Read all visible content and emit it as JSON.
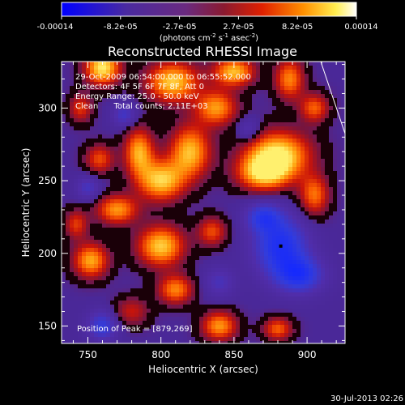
{
  "chart_data": {
    "type": "heatmap",
    "title": "Reconstructed RHESSI Image",
    "xlabel": "Heliocentric X (arcsec)",
    "ylabel": "Heliocentric Y (arcsec)",
    "xlim": [
      732,
      926
    ],
    "ylim": [
      138,
      332
    ],
    "xticks": [
      750,
      800,
      850,
      900
    ],
    "yticks": [
      150,
      200,
      250,
      300
    ],
    "colorbar": {
      "ticks": [
        "-0.00014",
        "-8.2e-05",
        "-2.7e-05",
        "2.7e-05",
        "8.2e-05",
        "0.00014"
      ],
      "unit_prefix": "(photons cm",
      "unit_exp1": "-2",
      "unit_mid": " s",
      "unit_exp2": "-1",
      "unit_mid2": " asec",
      "unit_exp3": "-2",
      "unit_suffix": ")",
      "min": -0.00014,
      "max": 0.00014
    },
    "info_lines": [
      "29-Oct-2009 06:54:00.000 to 06:55:52.000",
      "Detectors: 4F 5F 6F 7F 8F, Att 0",
      "Energy Range: 25.0 - 50.0 keV",
      "Clean      Total counts: 2.11E+03"
    ],
    "peak_label": "Position of Peak = [879,269]",
    "peak": [
      879,
      269
    ],
    "marker": [
      882,
      205
    ],
    "blobs": [
      {
        "x": 760,
        "y": 328,
        "v": 1.0,
        "rx": 12,
        "ry": 12
      },
      {
        "x": 808,
        "y": 318,
        "v": 0.9,
        "rx": 18,
        "ry": 14
      },
      {
        "x": 850,
        "y": 325,
        "v": 0.85,
        "rx": 14,
        "ry": 10
      },
      {
        "x": 888,
        "y": 320,
        "v": 0.7,
        "rx": 10,
        "ry": 14
      },
      {
        "x": 905,
        "y": 300,
        "v": 0.6,
        "rx": 10,
        "ry": 10
      },
      {
        "x": 880,
        "y": 268,
        "v": 1.0,
        "rx": 22,
        "ry": 16
      },
      {
        "x": 870,
        "y": 255,
        "v": 0.8,
        "rx": 18,
        "ry": 12
      },
      {
        "x": 838,
        "y": 300,
        "v": 0.75,
        "rx": 14,
        "ry": 12
      },
      {
        "x": 820,
        "y": 270,
        "v": 0.85,
        "rx": 14,
        "ry": 18
      },
      {
        "x": 800,
        "y": 250,
        "v": 0.9,
        "rx": 16,
        "ry": 14
      },
      {
        "x": 785,
        "y": 270,
        "v": 0.8,
        "rx": 10,
        "ry": 16
      },
      {
        "x": 758,
        "y": 265,
        "v": 0.55,
        "rx": 10,
        "ry": 10
      },
      {
        "x": 770,
        "y": 230,
        "v": 0.75,
        "rx": 14,
        "ry": 10
      },
      {
        "x": 742,
        "y": 220,
        "v": 0.5,
        "rx": 8,
        "ry": 10
      },
      {
        "x": 752,
        "y": 195,
        "v": 0.8,
        "rx": 12,
        "ry": 12
      },
      {
        "x": 800,
        "y": 205,
        "v": 0.9,
        "rx": 16,
        "ry": 14
      },
      {
        "x": 835,
        "y": 215,
        "v": 0.55,
        "rx": 10,
        "ry": 10
      },
      {
        "x": 810,
        "y": 175,
        "v": 0.7,
        "rx": 12,
        "ry": 10
      },
      {
        "x": 780,
        "y": 160,
        "v": 0.4,
        "rx": 12,
        "ry": 10
      },
      {
        "x": 840,
        "y": 150,
        "v": 0.75,
        "rx": 12,
        "ry": 10
      },
      {
        "x": 880,
        "y": 148,
        "v": 0.6,
        "rx": 10,
        "ry": 8
      },
      {
        "x": 905,
        "y": 240,
        "v": 0.65,
        "rx": 10,
        "ry": 14
      },
      {
        "x": 745,
        "y": 300,
        "v": 0.5,
        "rx": 8,
        "ry": 10
      },
      {
        "x": 882,
        "y": 205,
        "v": -0.85,
        "rx": 18,
        "ry": 20
      },
      {
        "x": 895,
        "y": 185,
        "v": -0.75,
        "rx": 16,
        "ry": 12
      },
      {
        "x": 870,
        "y": 225,
        "v": -0.6,
        "rx": 12,
        "ry": 10
      },
      {
        "x": 760,
        "y": 150,
        "v": -0.6,
        "rx": 10,
        "ry": 10
      },
      {
        "x": 775,
        "y": 295,
        "v": -0.45,
        "rx": 8,
        "ry": 8
      },
      {
        "x": 750,
        "y": 245,
        "v": -0.4,
        "rx": 8,
        "ry": 8
      },
      {
        "x": 840,
        "y": 180,
        "v": -0.35,
        "rx": 10,
        "ry": 10
      },
      {
        "x": 860,
        "y": 285,
        "v": -0.35,
        "rx": 8,
        "ry": 8
      }
    ]
  },
  "footer": {
    "timestamp": "30-Jul-2013 02:26"
  }
}
